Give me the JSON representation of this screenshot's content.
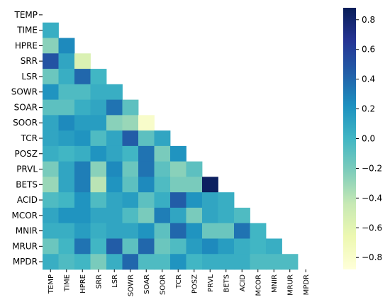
{
  "chart_data": {
    "type": "heatmap",
    "title": "",
    "xlabel": "",
    "ylabel": "",
    "mask": "upper-triangle-including-diagonal",
    "variables": [
      "TEMP",
      "TIME",
      "HPRE",
      "SRR",
      "LSR",
      "SOWR",
      "SOAR",
      "SOOR",
      "TCR",
      "POSZ",
      "PRVL",
      "BETS",
      "ACID",
      "MCOR",
      "MNIR",
      "MRUR",
      "MPDR"
    ],
    "values": [
      [],
      [
        0.05
      ],
      [
        -0.25,
        0.25
      ],
      [
        0.5,
        0.1,
        -0.55
      ],
      [
        -0.15,
        0.05,
        0.4,
        0.0
      ],
      [
        0.2,
        -0.05,
        -0.05,
        0.05,
        0.05
      ],
      [
        -0.1,
        -0.1,
        0.05,
        0.1,
        0.35,
        -0.1
      ],
      [
        0.1,
        0.25,
        0.15,
        0.15,
        -0.25,
        -0.3,
        -0.8
      ],
      [
        0.1,
        0.15,
        0.2,
        -0.05,
        0.1,
        0.45,
        -0.1,
        0.1
      ],
      [
        0.05,
        0.0,
        0.05,
        0.2,
        0.1,
        0.0,
        0.35,
        -0.2,
        0.2
      ],
      [
        -0.2,
        0.1,
        0.3,
        -0.25,
        0.25,
        -0.15,
        0.35,
        -0.1,
        -0.25,
        -0.1
      ],
      [
        -0.3,
        0.1,
        0.3,
        -0.4,
        0.2,
        -0.1,
        0.25,
        -0.05,
        -0.2,
        -0.2,
        0.85
      ],
      [
        -0.05,
        0.0,
        0.2,
        -0.05,
        0.1,
        0.15,
        -0.1,
        0.05,
        0.45,
        0.2,
        0.1,
        0.05
      ],
      [
        0.1,
        0.2,
        0.2,
        0.1,
        0.1,
        -0.05,
        -0.2,
        0.3,
        0.1,
        -0.2,
        0.1,
        0.05,
        -0.05
      ],
      [
        0.05,
        0.05,
        0.15,
        0.05,
        0.1,
        0.1,
        0.2,
        -0.1,
        0.4,
        0.2,
        -0.15,
        -0.15,
        0.35,
        0.0
      ],
      [
        -0.15,
        0.0,
        0.35,
        0.0,
        0.45,
        -0.1,
        0.4,
        -0.15,
        -0.05,
        0.15,
        0.25,
        0.15,
        0.05,
        0.0,
        0.05
      ],
      [
        0.05,
        -0.05,
        0.0,
        -0.2,
        0.05,
        0.4,
        -0.05,
        -0.05,
        0.2,
        0.0,
        0.05,
        0.05,
        0.05,
        -0.05,
        -0.05,
        -0.05
      ]
    ],
    "colorbar": {
      "colormap": "YlGnBu",
      "range": [
        -0.88,
        0.88
      ],
      "ticks": [
        0.8,
        0.6,
        0.4,
        0.2,
        0.0,
        -0.2,
        -0.4,
        -0.6,
        -0.8
      ],
      "tick_labels": [
        "0.8",
        "0.6",
        "0.4",
        "0.2",
        "0.0",
        "−0.2",
        "−0.4",
        "−0.6",
        "−0.8"
      ]
    }
  }
}
